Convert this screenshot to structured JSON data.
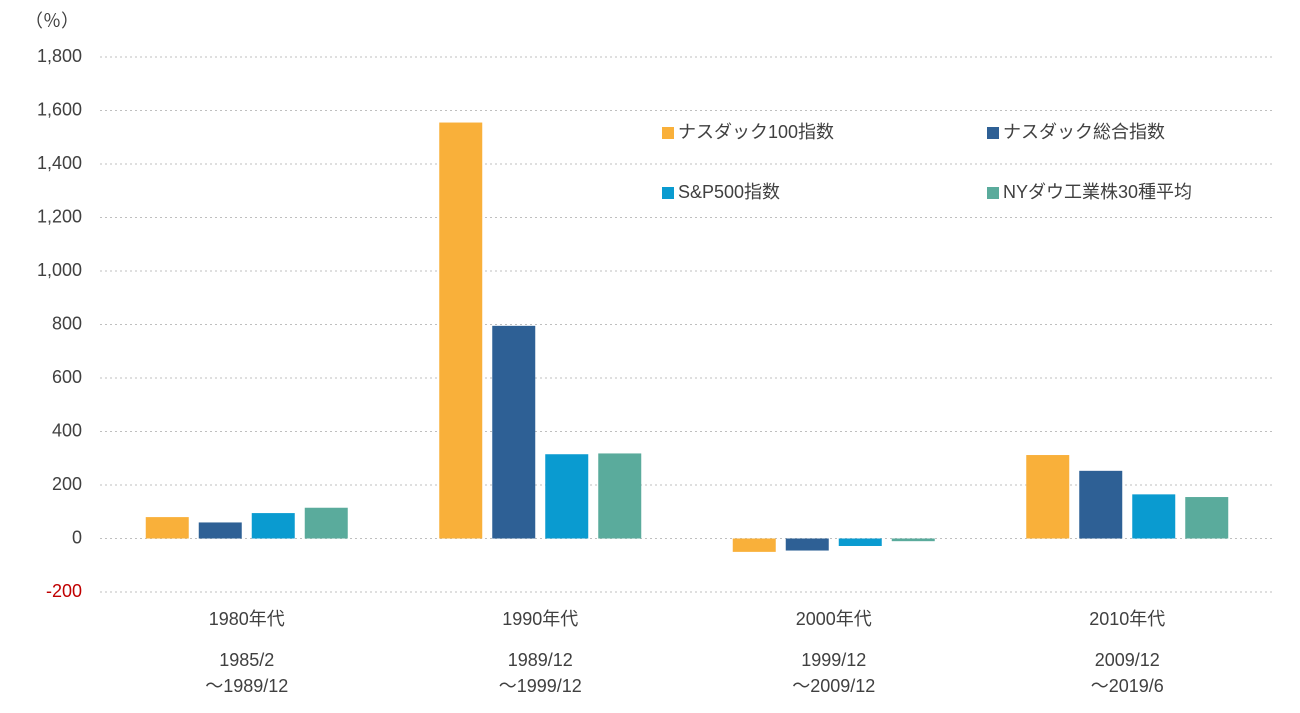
{
  "chart_data": {
    "type": "bar",
    "y_label": "（％）",
    "categories": [
      "1980年代",
      "1990年代",
      "2000年代",
      "2010年代"
    ],
    "periods": [
      [
        "1985/2",
        "～1989/12"
      ],
      [
        "1989/12",
        "～1999/12"
      ],
      [
        "1999/12",
        "～2009/12"
      ],
      [
        "2009/12",
        "～2019/6"
      ]
    ],
    "series": [
      {
        "name": "ナスダック100指数",
        "color": "#f9b03a",
        "values": [
          80,
          1555,
          -50,
          312
        ]
      },
      {
        "name": "ナスダック総合指数",
        "color": "#2e6095",
        "values": [
          60,
          795,
          -45,
          253
        ]
      },
      {
        "name": "S&P500指数",
        "color": "#0a9bd0",
        "values": [
          95,
          315,
          -28,
          165
        ]
      },
      {
        "name": "NYダウ工業株30種平均",
        "color": "#5aab9c",
        "values": [
          115,
          318,
          -10,
          155
        ]
      }
    ],
    "ylim": [
      -200,
      1800
    ],
    "yticks": [
      -200,
      0,
      200,
      400,
      600,
      800,
      {
        "value": 1000,
        "label": "1,000"
      },
      {
        "value": 1200,
        "label": "1,200"
      },
      {
        "value": 1400,
        "label": "1,400"
      },
      {
        "value": 1600,
        "label": "1,600"
      },
      {
        "value": 1800,
        "label": "1,800"
      }
    ],
    "negative_tick_color": "#c00000",
    "grid": true
  }
}
